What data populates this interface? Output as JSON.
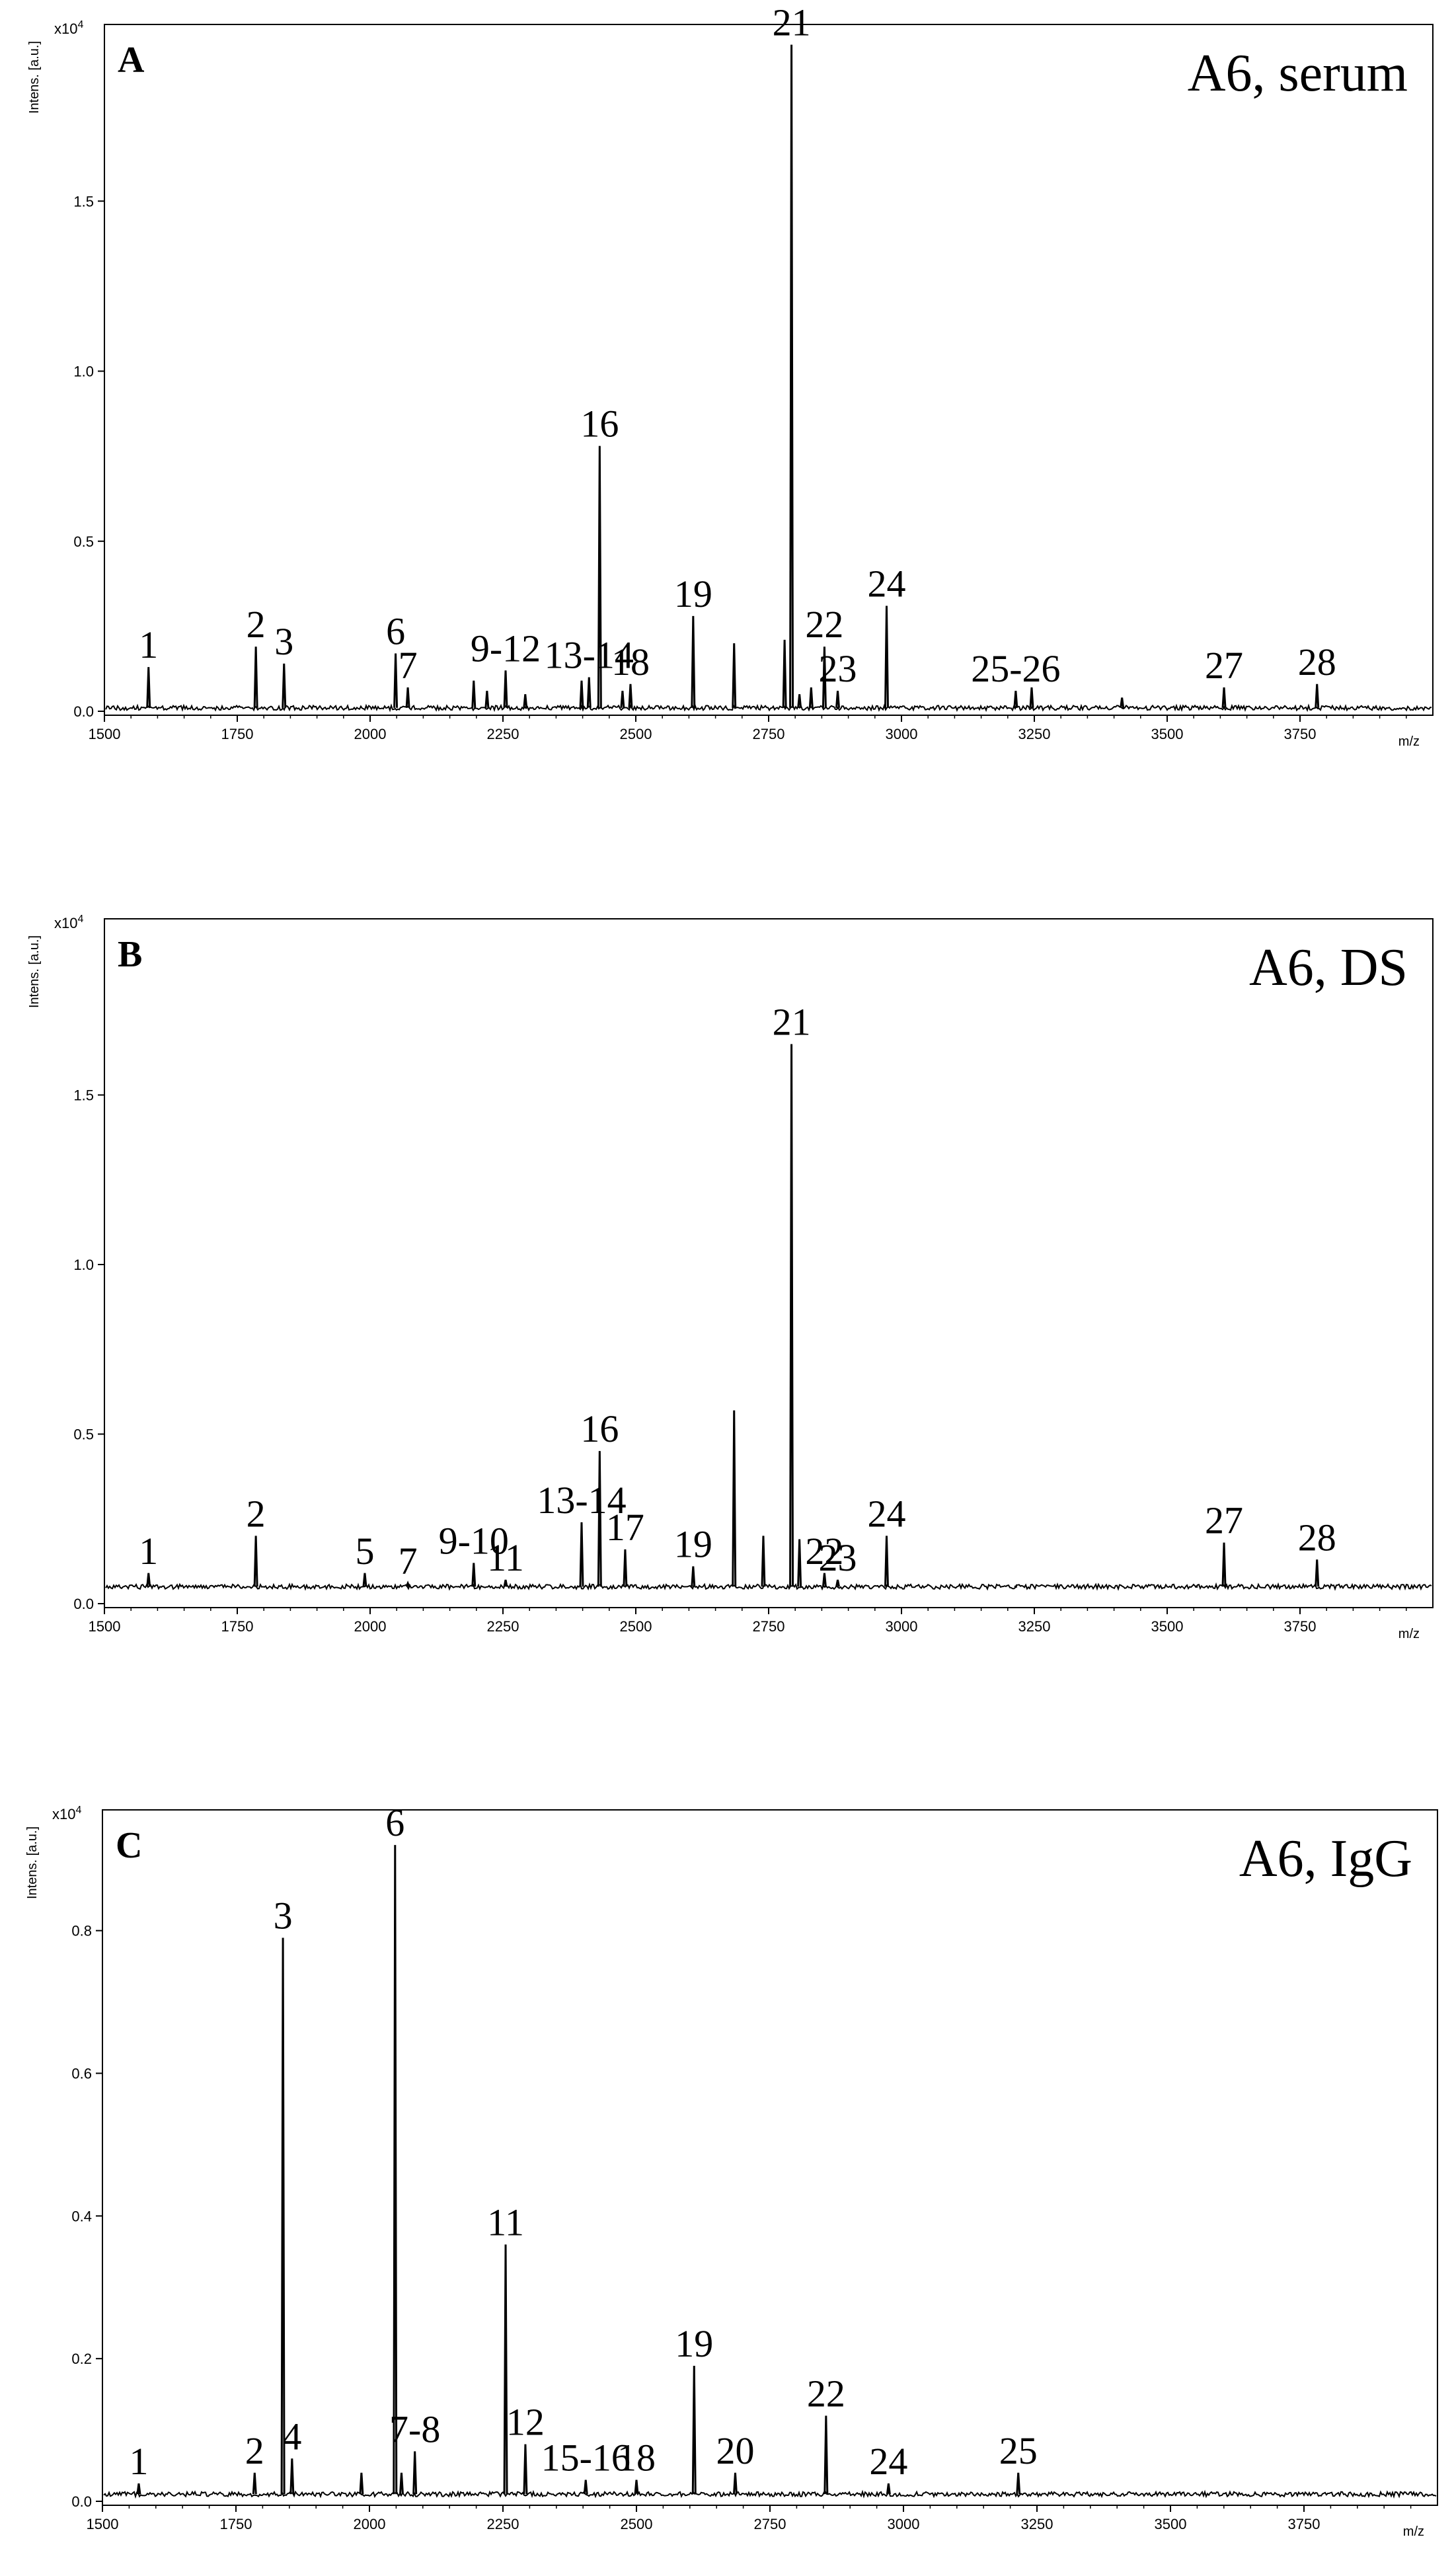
{
  "chart_data": [
    {
      "type": "line",
      "panel_letter": "A",
      "title": "A6, serum",
      "ylabel": "Intens. [a.u.]",
      "y_multiplier": "x10",
      "y_multiplier_exp": "4",
      "xlabel": "m/z",
      "xlim": [
        1500,
        4000
      ],
      "ylim": [
        0,
        2.0
      ],
      "x_ticks": [
        "1500",
        "1750",
        "2000",
        "2250",
        "2500",
        "2750",
        "3000",
        "3250",
        "3500",
        "3750"
      ],
      "y_ticks": [
        "0.0",
        "0.5",
        "1.0",
        "1.5"
      ],
      "baseline": 0.01,
      "series": [
        {
          "peaks": [
            {
              "x": 1583,
              "y": 0.13,
              "label": "1"
            },
            {
              "x": 1785,
              "y": 0.19,
              "label": "2"
            },
            {
              "x": 1838,
              "y": 0.14,
              "label": "3"
            },
            {
              "x": 2048,
              "y": 0.17,
              "label": "6"
            },
            {
              "x": 2071,
              "y": 0.07,
              "label": "7"
            },
            {
              "x": 2195,
              "y": 0.09
            },
            {
              "x": 2220,
              "y": 0.06
            },
            {
              "x": 2255,
              "y": 0.12,
              "label": "9-12"
            },
            {
              "x": 2292,
              "y": 0.05
            },
            {
              "x": 2398,
              "y": 0.09
            },
            {
              "x": 2412,
              "y": 0.1,
              "label": "13-14"
            },
            {
              "x": 2432,
              "y": 0.78,
              "label": "16"
            },
            {
              "x": 2475,
              "y": 0.06
            },
            {
              "x": 2490,
              "y": 0.08,
              "label": "18"
            },
            {
              "x": 2608,
              "y": 0.28,
              "label": "19"
            },
            {
              "x": 2685,
              "y": 0.2
            },
            {
              "x": 2780,
              "y": 0.21
            },
            {
              "x": 2793,
              "y": 1.96,
              "label": "21"
            },
            {
              "x": 2808,
              "y": 0.05
            },
            {
              "x": 2830,
              "y": 0.07
            },
            {
              "x": 2855,
              "y": 0.19,
              "label": "22"
            },
            {
              "x": 2880,
              "y": 0.06,
              "label": "23"
            },
            {
              "x": 2972,
              "y": 0.31,
              "label": "24"
            },
            {
              "x": 3215,
              "y": 0.06,
              "label": "25-26"
            },
            {
              "x": 3245,
              "y": 0.07
            },
            {
              "x": 3415,
              "y": 0.04
            },
            {
              "x": 3607,
              "y": 0.07,
              "label": "27"
            },
            {
              "x": 3782,
              "y": 0.08,
              "label": "28"
            }
          ]
        }
      ]
    },
    {
      "type": "line",
      "panel_letter": "B",
      "title": "A6, DS",
      "ylabel": "Intens. [a.u.]",
      "y_multiplier": "x10",
      "y_multiplier_exp": "4",
      "xlabel": "m/z",
      "xlim": [
        1500,
        4000
      ],
      "ylim": [
        0,
        2.0
      ],
      "x_ticks": [
        "1500",
        "1750",
        "2000",
        "2250",
        "2500",
        "2750",
        "3000",
        "3250",
        "3500",
        "3750"
      ],
      "y_ticks": [
        "0.0",
        "0.5",
        "1.0",
        "1.5"
      ],
      "baseline": 0.05,
      "series": [
        {
          "peaks": [
            {
              "x": 1583,
              "y": 0.09,
              "label": "1"
            },
            {
              "x": 1785,
              "y": 0.2,
              "label": "2"
            },
            {
              "x": 1990,
              "y": 0.09,
              "label": "5"
            },
            {
              "x": 2071,
              "y": 0.06,
              "label": "7"
            },
            {
              "x": 2195,
              "y": 0.12,
              "label": "9-10"
            },
            {
              "x": 2255,
              "y": 0.07,
              "label": "11"
            },
            {
              "x": 2398,
              "y": 0.24,
              "label": "13-14"
            },
            {
              "x": 2432,
              "y": 0.45,
              "label": "16"
            },
            {
              "x": 2480,
              "y": 0.16,
              "label": "17"
            },
            {
              "x": 2608,
              "y": 0.11,
              "label": "19"
            },
            {
              "x": 2685,
              "y": 0.57
            },
            {
              "x": 2740,
              "y": 0.2
            },
            {
              "x": 2793,
              "y": 1.65,
              "label": "21"
            },
            {
              "x": 2808,
              "y": 0.19
            },
            {
              "x": 2855,
              "y": 0.09,
              "label": "22"
            },
            {
              "x": 2880,
              "y": 0.07,
              "label": "23"
            },
            {
              "x": 2972,
              "y": 0.2,
              "label": "24"
            },
            {
              "x": 3215,
              "y": 0.05
            },
            {
              "x": 3555,
              "y": 0.05
            },
            {
              "x": 3607,
              "y": 0.18,
              "label": "27"
            },
            {
              "x": 3782,
              "y": 0.13,
              "label": "28"
            }
          ]
        }
      ]
    },
    {
      "type": "line",
      "panel_letter": "C",
      "title": "A6, IgG",
      "ylabel": "Intens. [a.u.]",
      "y_multiplier": "x10",
      "y_multiplier_exp": "4",
      "xlabel": "m/z",
      "xlim": [
        1500,
        4000
      ],
      "ylim": [
        0,
        0.96
      ],
      "x_ticks": [
        "1500",
        "1750",
        "2000",
        "2250",
        "2500",
        "2750",
        "3000",
        "3250",
        "3500",
        "3750"
      ],
      "y_ticks": [
        "0.0",
        "0.2",
        "0.4",
        "0.6",
        "0.8"
      ],
      "baseline": 0.01,
      "series": [
        {
          "peaks": [
            {
              "x": 1568,
              "y": 0.025,
              "label": "1"
            },
            {
              "x": 1785,
              "y": 0.04,
              "label": "2"
            },
            {
              "x": 1838,
              "y": 0.79,
              "label": "3"
            },
            {
              "x": 1855,
              "y": 0.06,
              "label": "4"
            },
            {
              "x": 1985,
              "y": 0.04
            },
            {
              "x": 2048,
              "y": 0.92,
              "label": "6"
            },
            {
              "x": 2060,
              "y": 0.04
            },
            {
              "x": 2085,
              "y": 0.07,
              "label": "7-8"
            },
            {
              "x": 2255,
              "y": 0.36,
              "label": "11"
            },
            {
              "x": 2292,
              "y": 0.08,
              "label": "12"
            },
            {
              "x": 2405,
              "y": 0.03,
              "label": "15-16"
            },
            {
              "x": 2500,
              "y": 0.03,
              "label": "18"
            },
            {
              "x": 2608,
              "y": 0.19,
              "label": "19"
            },
            {
              "x": 2685,
              "y": 0.04,
              "label": "20"
            },
            {
              "x": 2855,
              "y": 0.12,
              "label": "22"
            },
            {
              "x": 2972,
              "y": 0.025,
              "label": "24"
            },
            {
              "x": 3215,
              "y": 0.04,
              "label": "25"
            }
          ]
        }
      ]
    }
  ]
}
